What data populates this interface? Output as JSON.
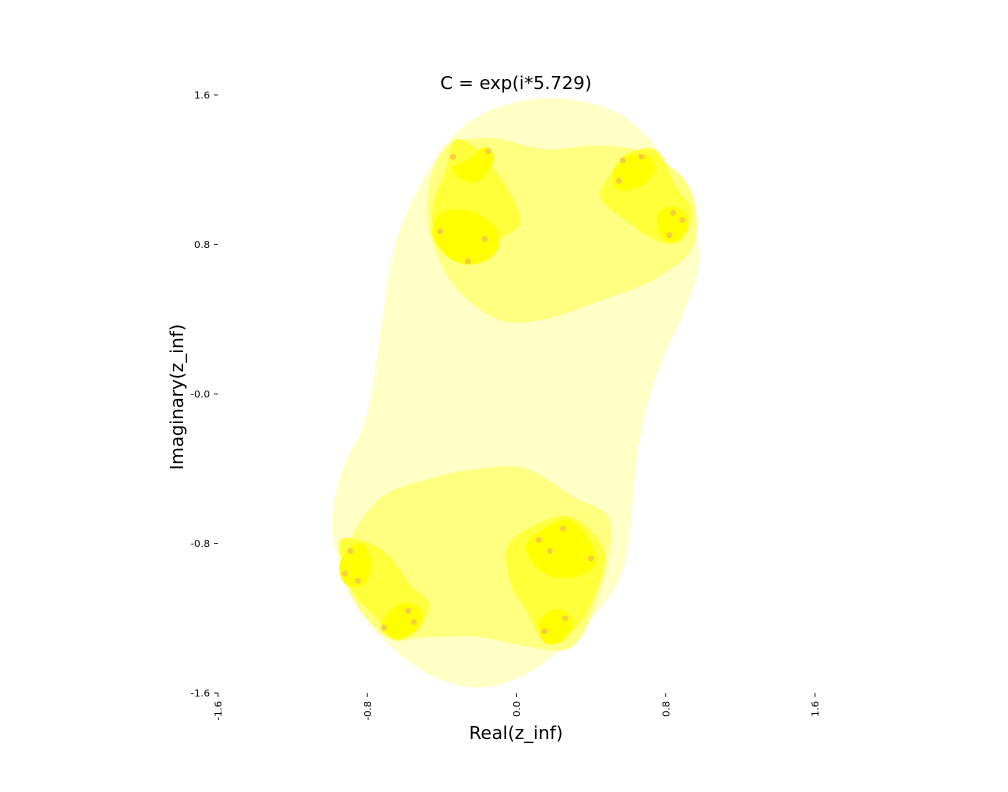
{
  "chart_data": {
    "type": "scatter",
    "title": "C = exp(i*5.729)",
    "xlabel": "Real(z_inf)",
    "ylabel": "Imaginary(z_inf)",
    "xlim": [
      -1.6,
      1.6
    ],
    "ylim": [
      -1.6,
      1.6
    ],
    "x_ticks": [
      -1.6,
      -0.8,
      0.0,
      0.8,
      1.6
    ],
    "x_tick_labels": [
      "-1.6",
      "-0.8",
      "0.0",
      "0.8",
      "1.6"
    ],
    "y_ticks": [
      1.6,
      0.8,
      0.0,
      -0.8,
      -1.6
    ],
    "y_tick_labels": [
      "1.6",
      "0.8",
      "-0.0",
      "-0.8",
      "-1.6"
    ],
    "grid": false,
    "colors": {
      "level1": "#ffffc6",
      "level2": "#ffff80",
      "level3": "#ffff3a",
      "level4": "#ffff00",
      "level5": "#f6c44a"
    },
    "regions": [
      {
        "level": 1,
        "points": [
          [
            0.25,
            1.58
          ],
          [
            0.55,
            1.5
          ],
          [
            0.78,
            1.28
          ],
          [
            0.92,
            1.0
          ],
          [
            0.98,
            0.72
          ],
          [
            0.9,
            0.45
          ],
          [
            0.75,
            0.1
          ],
          [
            0.65,
            -0.3
          ],
          [
            0.6,
            -0.8
          ],
          [
            0.52,
            -1.05
          ],
          [
            0.3,
            -1.3
          ],
          [
            0.05,
            -1.5
          ],
          [
            -0.25,
            -1.57
          ],
          [
            -0.55,
            -1.45
          ],
          [
            -0.8,
            -1.2
          ],
          [
            -0.98,
            -0.8
          ],
          [
            -0.95,
            -0.45
          ],
          [
            -0.8,
            -0.1
          ],
          [
            -0.72,
            0.4
          ],
          [
            -0.65,
            0.8
          ],
          [
            -0.5,
            1.15
          ],
          [
            -0.3,
            1.42
          ],
          [
            -0.05,
            1.55
          ]
        ]
      },
      {
        "level": 2,
        "points": [
          [
            -0.4,
            1.3
          ],
          [
            -0.15,
            1.37
          ],
          [
            0.15,
            1.31
          ],
          [
            0.45,
            1.33
          ],
          [
            0.72,
            1.28
          ],
          [
            0.93,
            1.1
          ],
          [
            0.95,
            0.8
          ],
          [
            0.75,
            0.62
          ],
          [
            0.45,
            0.5
          ],
          [
            0.15,
            0.4
          ],
          [
            -0.1,
            0.4
          ],
          [
            -0.35,
            0.6
          ],
          [
            -0.48,
            0.95
          ]
        ]
      },
      {
        "level": 2,
        "points": [
          [
            -0.9,
            -0.8
          ],
          [
            -0.72,
            -0.55
          ],
          [
            -0.45,
            -0.45
          ],
          [
            -0.2,
            -0.4
          ],
          [
            0.05,
            -0.4
          ],
          [
            0.3,
            -0.55
          ],
          [
            0.5,
            -0.68
          ],
          [
            0.45,
            -1.05
          ],
          [
            0.3,
            -1.35
          ],
          [
            0.05,
            -1.35
          ],
          [
            -0.2,
            -1.3
          ],
          [
            -0.45,
            -1.3
          ],
          [
            -0.7,
            -1.3
          ],
          [
            -0.9,
            -1.05
          ]
        ]
      },
      {
        "level": 3,
        "points": [
          [
            -0.33,
            1.36
          ],
          [
            -0.2,
            1.3
          ],
          [
            -0.05,
            1.1
          ],
          [
            0.02,
            0.92
          ],
          [
            -0.1,
            0.82
          ],
          [
            -0.25,
            0.69
          ],
          [
            -0.42,
            0.8
          ],
          [
            -0.45,
            1.0
          ],
          [
            -0.38,
            1.2
          ]
        ]
      },
      {
        "level": 3,
        "points": [
          [
            0.52,
            1.2
          ],
          [
            0.6,
            1.29
          ],
          [
            0.75,
            1.3
          ],
          [
            0.86,
            1.1
          ],
          [
            0.94,
            0.98
          ],
          [
            0.88,
            0.82
          ],
          [
            0.75,
            0.82
          ],
          [
            0.6,
            0.92
          ],
          [
            0.45,
            1.05
          ]
        ]
      },
      {
        "level": 3,
        "points": [
          [
            -0.95,
            -0.8
          ],
          [
            -0.85,
            -0.78
          ],
          [
            -0.7,
            -0.85
          ],
          [
            -0.57,
            -1.02
          ],
          [
            -0.47,
            -1.12
          ],
          [
            -0.52,
            -1.25
          ],
          [
            -0.65,
            -1.32
          ],
          [
            -0.75,
            -1.2
          ],
          [
            -0.88,
            -1.05
          ]
        ]
      },
      {
        "level": 3,
        "points": [
          [
            -0.05,
            -0.82
          ],
          [
            0.1,
            -0.7
          ],
          [
            0.3,
            -0.66
          ],
          [
            0.47,
            -0.85
          ],
          [
            0.4,
            -1.12
          ],
          [
            0.3,
            -1.27
          ],
          [
            0.15,
            -1.32
          ],
          [
            0.05,
            -1.15
          ],
          [
            -0.03,
            -1.02
          ]
        ]
      },
      {
        "level": 4,
        "points": [
          [
            -0.34,
            1.21
          ],
          [
            -0.25,
            1.26
          ],
          [
            -0.17,
            1.32
          ],
          [
            -0.12,
            1.26
          ],
          [
            -0.2,
            1.14
          ],
          [
            -0.3,
            1.15
          ]
        ]
      },
      {
        "level": 4,
        "points": [
          [
            -0.45,
            0.85
          ],
          [
            -0.4,
            0.97
          ],
          [
            -0.25,
            0.98
          ],
          [
            -0.12,
            0.9
          ],
          [
            -0.1,
            0.78
          ],
          [
            -0.2,
            0.7
          ],
          [
            -0.35,
            0.72
          ]
        ]
      },
      {
        "level": 4,
        "points": [
          [
            0.52,
            1.18
          ],
          [
            0.58,
            1.27
          ],
          [
            0.7,
            1.28
          ],
          [
            0.74,
            1.2
          ],
          [
            0.68,
            1.12
          ],
          [
            0.55,
            1.09
          ]
        ]
      },
      {
        "level": 4,
        "points": [
          [
            0.76,
            0.97
          ],
          [
            0.85,
            1.0
          ],
          [
            0.92,
            0.93
          ],
          [
            0.88,
            0.83
          ],
          [
            0.8,
            0.82
          ],
          [
            0.76,
            0.88
          ]
        ]
      },
      {
        "level": 4,
        "points": [
          [
            -0.92,
            -0.85
          ],
          [
            -0.83,
            -0.8
          ],
          [
            -0.78,
            -0.9
          ],
          [
            -0.81,
            -1.01
          ],
          [
            -0.9,
            -1.03
          ],
          [
            -0.95,
            -0.95
          ]
        ]
      },
      {
        "level": 4,
        "points": [
          [
            -0.7,
            -1.19
          ],
          [
            -0.62,
            -1.12
          ],
          [
            -0.52,
            -1.15
          ],
          [
            -0.53,
            -1.26
          ],
          [
            -0.64,
            -1.31
          ],
          [
            -0.72,
            -1.26
          ]
        ]
      },
      {
        "level": 4,
        "points": [
          [
            0.05,
            -0.82
          ],
          [
            0.15,
            -0.72
          ],
          [
            0.3,
            -0.68
          ],
          [
            0.43,
            -0.88
          ],
          [
            0.32,
            -0.98
          ],
          [
            0.15,
            -0.96
          ]
        ]
      },
      {
        "level": 4,
        "points": [
          [
            0.12,
            -1.22
          ],
          [
            0.22,
            -1.15
          ],
          [
            0.3,
            -1.22
          ],
          [
            0.25,
            -1.32
          ],
          [
            0.15,
            -1.33
          ]
        ]
      }
    ],
    "points": [
      [
        -0.34,
        1.27
      ],
      [
        -0.15,
        1.3
      ],
      [
        -0.41,
        0.87
      ],
      [
        -0.17,
        0.83
      ],
      [
        -0.26,
        0.71
      ],
      [
        0.57,
        1.25
      ],
      [
        0.67,
        1.27
      ],
      [
        0.55,
        1.14
      ],
      [
        0.84,
        0.97
      ],
      [
        0.89,
        0.93
      ],
      [
        0.82,
        0.85
      ],
      [
        -0.89,
        -0.84
      ],
      [
        -0.92,
        -0.96
      ],
      [
        -0.85,
        -1.0
      ],
      [
        -0.58,
        -1.16
      ],
      [
        -0.55,
        -1.22
      ],
      [
        -0.71,
        -1.25
      ],
      [
        0.12,
        -0.78
      ],
      [
        0.18,
        -0.84
      ],
      [
        0.25,
        -0.72
      ],
      [
        0.4,
        -0.88
      ],
      [
        0.15,
        -1.27
      ],
      [
        0.26,
        -1.2
      ]
    ]
  }
}
